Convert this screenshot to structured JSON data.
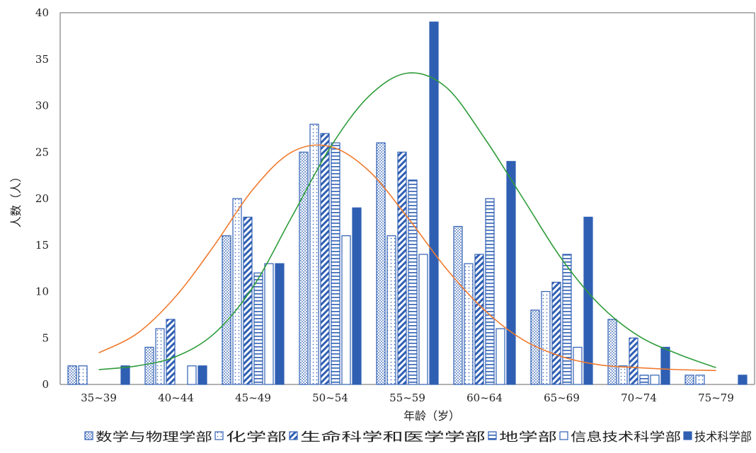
{
  "chart_data": {
    "type": "bar",
    "title": "",
    "xlabel": "年龄（岁）",
    "ylabel": "人数（人）",
    "ylim": [
      0,
      40
    ],
    "yticks": [
      0,
      5,
      10,
      15,
      20,
      25,
      30,
      35,
      40
    ],
    "grid": false,
    "legend_position": "bottom",
    "categories": [
      "35~39",
      "40~44",
      "45~49",
      "50~54",
      "55~59",
      "60~64",
      "65~69",
      "70~74",
      "75~79"
    ],
    "series": [
      {
        "name": "数学与物理学部",
        "pattern": "dots-dense",
        "color": "#2f5fb3",
        "values": [
          2,
          4,
          16,
          25,
          26,
          17,
          8,
          7,
          1
        ]
      },
      {
        "name": "化学部",
        "pattern": "dots-sparse",
        "color": "#2f5fb3",
        "values": [
          2,
          6,
          20,
          28,
          16,
          13,
          10,
          2,
          1
        ]
      },
      {
        "name": "生命科学和医学学部",
        "pattern": "diagonal-stripes",
        "color": "#2f5fb3",
        "values": [
          0,
          7,
          18,
          27,
          25,
          14,
          11,
          5,
          0
        ]
      },
      {
        "name": "地学部",
        "pattern": "horizontal-stripes",
        "color": "#2f5fb3",
        "values": [
          0,
          0,
          12,
          26,
          22,
          20,
          14,
          1,
          0
        ]
      },
      {
        "name": "信息技术科学部",
        "pattern": "hollow",
        "color": "#2f5fb3",
        "values": [
          0,
          2,
          13,
          16,
          14,
          6,
          4,
          1,
          0
        ]
      },
      {
        "name": "技术科学部",
        "pattern": "solid",
        "color": "#2f5fb3",
        "values": [
          2,
          2,
          13,
          19,
          39,
          24,
          18,
          4,
          1
        ]
      }
    ],
    "curves": [
      {
        "color": "#f07a2e",
        "x": [
          0,
          0.5,
          1,
          1.5,
          2,
          2.5,
          3,
          3.5,
          4,
          4.5,
          5,
          5.5,
          6,
          6.5,
          7,
          7.5,
          8
        ],
        "y": [
          3.4,
          5.5,
          9.5,
          15,
          21,
          25,
          25.6,
          23,
          18,
          12.5,
          8,
          4.8,
          3,
          2.1,
          1.8,
          1.6,
          1.5
        ]
      },
      {
        "color": "#2e9c3a",
        "x": [
          0,
          0.5,
          1,
          1.5,
          2,
          2.5,
          3,
          3.5,
          4,
          4.5,
          5,
          5.5,
          6,
          6.5,
          7,
          7.5,
          8
        ],
        "y": [
          1.6,
          2.0,
          3.0,
          5.5,
          10.5,
          18,
          25.5,
          31,
          33.5,
          32,
          26.5,
          20,
          13.5,
          8.5,
          5.2,
          3.3,
          1.8
        ]
      }
    ]
  }
}
